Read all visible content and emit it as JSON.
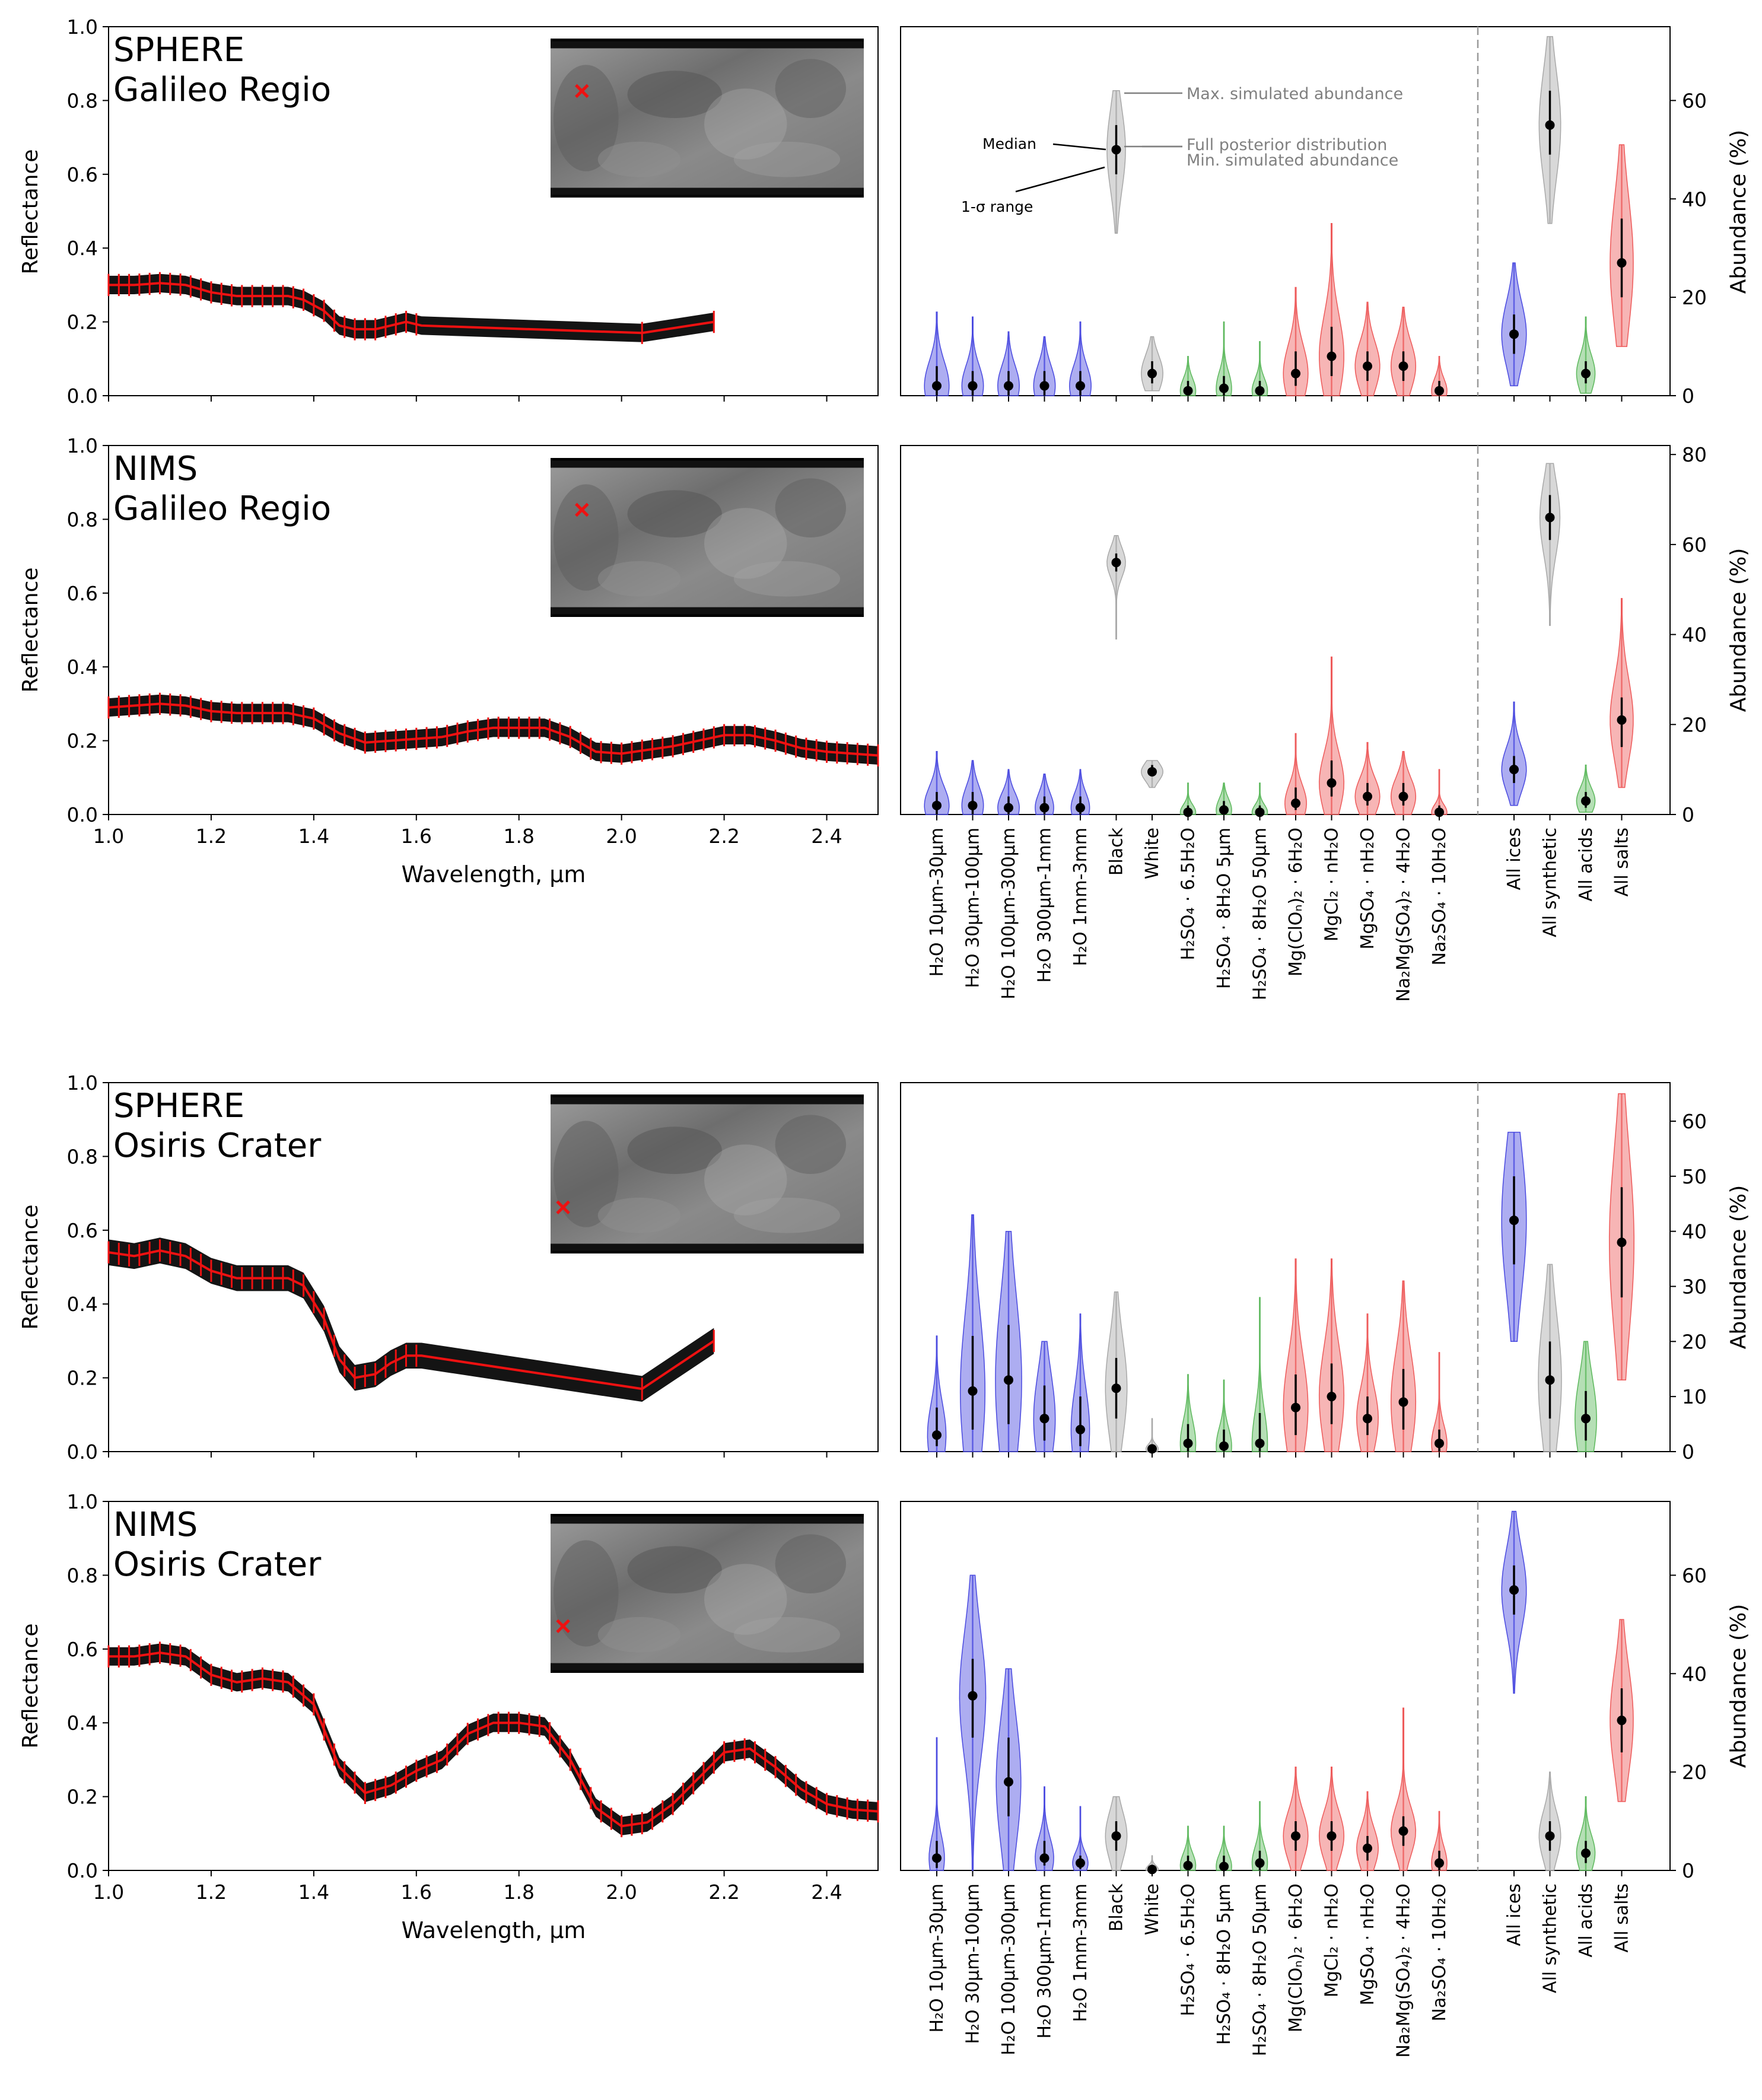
{
  "colors": {
    "ice": "#4a4ae0",
    "synthetic": "#a8a8a8",
    "acid": "#5cb85c",
    "salt": "#ee5a5a",
    "spectrum_model": "#000000",
    "spectrum_obs": "#ee1111",
    "marker": "#ee1111"
  },
  "labels": {
    "reflectance": "Reflectance",
    "wavelength": "Wavelength, µm",
    "abundance": "Abundance (%)"
  },
  "categories": [
    {
      "name": "H₂O 10µm-30µm",
      "group": "ice"
    },
    {
      "name": "H₂O 30µm-100µm",
      "group": "ice"
    },
    {
      "name": "H₂O 100µm-300µm",
      "group": "ice"
    },
    {
      "name": "H₂O 300µm-1mm",
      "group": "ice"
    },
    {
      "name": "H₂O 1mm-3mm",
      "group": "ice"
    },
    {
      "name": "Black",
      "group": "synthetic"
    },
    {
      "name": "White",
      "group": "synthetic"
    },
    {
      "name": "H₂SO₄ · 6.5H₂O",
      "group": "acid"
    },
    {
      "name": "H₂SO₄ · 8H₂O 5µm",
      "group": "acid"
    },
    {
      "name": "H₂SO₄ · 8H₂O 50µm",
      "group": "acid"
    },
    {
      "name": "Mg(ClOₙ)₂ · 6H₂O",
      "group": "salt"
    },
    {
      "name": "MgCl₂ · nH₂O",
      "group": "salt"
    },
    {
      "name": "MgSO₄ · nH₂O",
      "group": "salt"
    },
    {
      "name": "Na₂Mg(SO₄)₂ · 4H₂O",
      "group": "salt"
    },
    {
      "name": "Na₂SO₄ · 10H₂O",
      "group": "salt"
    }
  ],
  "totals": [
    {
      "name": "All ices",
      "group": "ice"
    },
    {
      "name": "All synthetic",
      "group": "synthetic"
    },
    {
      "name": "All acids",
      "group": "acid"
    },
    {
      "name": "All salts",
      "group": "salt"
    }
  ],
  "legend_annotations": {
    "max": "Max. simulated abundance",
    "full": "Full posterior distribution",
    "min": "Min. simulated abundance",
    "median": "Median",
    "sigma": "1-σ range"
  },
  "chart_data": [
    {
      "type": "line",
      "instrument": "SPHERE",
      "location": "Galileo Regio",
      "title": "SPHERE Galileo Regio",
      "xlabel": "Wavelength, µm",
      "ylabel": "Reflectance",
      "xlim": [
        1.0,
        2.5
      ],
      "ylim": [
        0.0,
        1.0
      ],
      "xticks": [
        "1.0",
        "1.2",
        "1.4",
        "1.6",
        "1.8",
        "2.0",
        "2.2",
        "2.4"
      ],
      "yticks": [
        "0.0",
        "0.2",
        "0.4",
        "0.6",
        "0.8",
        "1.0"
      ],
      "x": [
        1.0,
        1.05,
        1.1,
        1.15,
        1.2,
        1.25,
        1.3,
        1.35,
        1.38,
        1.42,
        1.45,
        1.48,
        1.52,
        1.55,
        1.58,
        1.61,
        2.04,
        2.18
      ],
      "y": [
        0.3,
        0.3,
        0.305,
        0.3,
        0.28,
        0.27,
        0.27,
        0.27,
        0.26,
        0.23,
        0.19,
        0.18,
        0.18,
        0.19,
        0.2,
        0.19,
        0.17,
        0.2
      ],
      "band_halfwidth": 0.025,
      "marker_lon_frac": 0.1,
      "marker_lat_frac": 0.33
    },
    {
      "type": "violin",
      "instrument": "SPHERE",
      "location": "Galileo Regio",
      "ylabel": "Abundance (%)",
      "ylim": [
        0,
        75
      ],
      "yticks": [
        0,
        20,
        40,
        60
      ],
      "medians": [
        2,
        2,
        2,
        2,
        2,
        50,
        4.5,
        1,
        1.5,
        1,
        4.5,
        8,
        6,
        6,
        1
      ],
      "sigma_low": [
        0,
        0,
        0,
        0,
        0,
        45,
        2.5,
        0,
        0,
        0,
        2,
        4,
        3,
        3,
        0
      ],
      "sigma_high": [
        6,
        5,
        5,
        5,
        5,
        55,
        7,
        3,
        4,
        3,
        9,
        14,
        9,
        9,
        3
      ],
      "mins": [
        0,
        0,
        0,
        0,
        0,
        33,
        1,
        0,
        0,
        0,
        0,
        0,
        0,
        0,
        0
      ],
      "maxs": [
        17,
        16,
        13,
        12,
        15,
        62,
        12,
        8,
        15,
        11,
        22,
        35,
        19,
        18,
        8
      ],
      "widths": [
        0.8,
        0.7,
        0.7,
        0.7,
        0.7,
        0.6,
        0.7,
        0.5,
        0.5,
        0.5,
        0.8,
        0.8,
        0.8,
        0.8,
        0.5
      ],
      "total_medians": [
        12.5,
        55,
        4.5,
        27
      ],
      "total_sigma_low": [
        8.5,
        49,
        2.5,
        20
      ],
      "total_sigma_high": [
        16.5,
        62,
        7,
        36
      ],
      "total_mins": [
        2,
        35,
        0.5,
        10
      ],
      "total_maxs": [
        27,
        73,
        16,
        51
      ],
      "total_widths": [
        0.8,
        0.7,
        0.6,
        0.75
      ]
    },
    {
      "type": "line",
      "instrument": "NIMS",
      "location": "Galileo Regio",
      "title": "NIMS Galileo Regio",
      "xlabel": "Wavelength, µm",
      "ylabel": "Reflectance",
      "xlim": [
        1.0,
        2.5
      ],
      "ylim": [
        0.0,
        1.0
      ],
      "xticks": [
        "1.0",
        "1.2",
        "1.4",
        "1.6",
        "1.8",
        "2.0",
        "2.2",
        "2.4"
      ],
      "yticks": [
        "0.0",
        "0.2",
        "0.4",
        "0.6",
        "0.8",
        "1.0"
      ],
      "x": [
        1.0,
        1.05,
        1.1,
        1.15,
        1.2,
        1.25,
        1.3,
        1.35,
        1.4,
        1.45,
        1.5,
        1.55,
        1.6,
        1.65,
        1.7,
        1.75,
        1.8,
        1.85,
        1.9,
        1.95,
        2.0,
        2.05,
        2.1,
        2.15,
        2.2,
        2.25,
        2.3,
        2.35,
        2.4,
        2.45,
        2.5
      ],
      "y": [
        0.29,
        0.295,
        0.3,
        0.295,
        0.28,
        0.275,
        0.275,
        0.275,
        0.26,
        0.22,
        0.195,
        0.2,
        0.205,
        0.21,
        0.225,
        0.235,
        0.235,
        0.235,
        0.21,
        0.17,
        0.165,
        0.175,
        0.185,
        0.2,
        0.215,
        0.215,
        0.2,
        0.18,
        0.17,
        0.165,
        0.16
      ],
      "band_halfwidth": 0.025,
      "marker_lon_frac": 0.1,
      "marker_lat_frac": 0.33
    },
    {
      "type": "violin",
      "instrument": "NIMS",
      "location": "Galileo Regio",
      "ylabel": "Abundance (%)",
      "ylim": [
        0,
        82
      ],
      "yticks": [
        0,
        20,
        40,
        60,
        80
      ],
      "medians": [
        2,
        2,
        1.5,
        1.5,
        1.5,
        56,
        9.5,
        0.5,
        1,
        0.5,
        2.5,
        7,
        4,
        4,
        0.5
      ],
      "sigma_low": [
        0,
        0,
        0,
        0,
        0,
        54,
        8.5,
        0,
        0,
        0,
        1,
        4,
        2,
        2,
        0
      ],
      "sigma_high": [
        5,
        5,
        4,
        4,
        4,
        58,
        11,
        2,
        3,
        2,
        6,
        12,
        7,
        7,
        2
      ],
      "mins": [
        0,
        0,
        0,
        0,
        0,
        39,
        6,
        0,
        0,
        0,
        0,
        0,
        0,
        0,
        0
      ],
      "maxs": [
        14,
        12,
        10,
        9,
        10,
        62,
        12,
        7,
        7,
        7,
        18,
        35,
        16,
        14,
        10
      ],
      "widths": [
        0.8,
        0.7,
        0.7,
        0.6,
        0.6,
        0.6,
        0.7,
        0.5,
        0.5,
        0.5,
        0.7,
        0.8,
        0.8,
        0.8,
        0.5
      ],
      "total_medians": [
        10,
        66,
        3,
        21
      ],
      "total_sigma_low": [
        7,
        61,
        1.5,
        15
      ],
      "total_sigma_high": [
        13,
        71,
        5,
        26
      ],
      "total_mins": [
        2,
        42,
        0.5,
        6
      ],
      "total_maxs": [
        25,
        78,
        11,
        48
      ],
      "total_widths": [
        0.8,
        0.65,
        0.6,
        0.75
      ]
    },
    {
      "type": "line",
      "instrument": "SPHERE",
      "location": "Osiris Crater",
      "title": "SPHERE Osiris Crater",
      "xlabel": "Wavelength, µm",
      "ylabel": "Reflectance",
      "xlim": [
        1.0,
        2.5
      ],
      "ylim": [
        0.0,
        1.0
      ],
      "xticks": [
        "1.0",
        "1.2",
        "1.4",
        "1.6",
        "1.8",
        "2.0",
        "2.2",
        "2.4"
      ],
      "yticks": [
        "0.0",
        "0.2",
        "0.4",
        "0.6",
        "0.8",
        "1.0"
      ],
      "x": [
        1.0,
        1.05,
        1.1,
        1.15,
        1.2,
        1.25,
        1.3,
        1.35,
        1.38,
        1.42,
        1.45,
        1.48,
        1.52,
        1.55,
        1.58,
        1.61,
        2.04,
        2.18
      ],
      "y": [
        0.54,
        0.53,
        0.545,
        0.53,
        0.49,
        0.47,
        0.47,
        0.47,
        0.45,
        0.36,
        0.25,
        0.2,
        0.21,
        0.24,
        0.26,
        0.26,
        0.17,
        0.3
      ],
      "band_halfwidth": 0.035,
      "marker_lon_frac": 0.04,
      "marker_lat_frac": 0.71
    },
    {
      "type": "violin",
      "instrument": "SPHERE",
      "location": "Osiris Crater",
      "ylabel": "Abundance (%)",
      "ylim": [
        0,
        67
      ],
      "yticks": [
        0,
        10,
        20,
        30,
        40,
        50,
        60
      ],
      "medians": [
        3,
        11,
        13,
        6,
        4,
        11.5,
        0.5,
        1.5,
        1,
        1.5,
        8,
        10,
        6,
        9,
        1.5
      ],
      "sigma_low": [
        1,
        4,
        5,
        2,
        1,
        6,
        0,
        0,
        0,
        0,
        3,
        5,
        3,
        4,
        0
      ],
      "sigma_high": [
        8,
        21,
        23,
        12,
        10,
        17,
        1,
        5,
        4,
        7,
        14,
        16,
        10,
        15,
        4
      ],
      "mins": [
        0,
        0,
        0,
        0,
        0,
        0,
        0,
        0,
        0,
        0,
        0,
        0,
        0,
        0,
        0
      ],
      "maxs": [
        21,
        43,
        40,
        20,
        25,
        29,
        6,
        14,
        13,
        28,
        35,
        35,
        25,
        31,
        18
      ],
      "widths": [
        0.6,
        0.8,
        0.85,
        0.7,
        0.6,
        0.7,
        0.4,
        0.5,
        0.5,
        0.5,
        0.8,
        0.8,
        0.7,
        0.8,
        0.5
      ],
      "total_medians": [
        42,
        13,
        6,
        38
      ],
      "total_sigma_low": [
        34,
        6,
        2,
        28
      ],
      "total_sigma_high": [
        50,
        20,
        11,
        48
      ],
      "total_mins": [
        20,
        0,
        0,
        13
      ],
      "total_maxs": [
        58,
        34,
        20,
        65
      ],
      "total_widths": [
        0.8,
        0.75,
        0.7,
        0.8
      ]
    },
    {
      "type": "line",
      "instrument": "NIMS",
      "location": "Osiris Crater",
      "title": "NIMS Osiris Crater",
      "xlabel": "Wavelength, µm",
      "ylabel": "Reflectance",
      "xlim": [
        1.0,
        2.5
      ],
      "ylim": [
        0.0,
        1.0
      ],
      "xticks": [
        "1.0",
        "1.2",
        "1.4",
        "1.6",
        "1.8",
        "2.0",
        "2.2",
        "2.4"
      ],
      "yticks": [
        "0.0",
        "0.2",
        "0.4",
        "0.6",
        "0.8",
        "1.0"
      ],
      "x": [
        1.0,
        1.05,
        1.1,
        1.15,
        1.2,
        1.25,
        1.3,
        1.35,
        1.4,
        1.45,
        1.5,
        1.55,
        1.6,
        1.65,
        1.7,
        1.75,
        1.8,
        1.85,
        1.9,
        1.95,
        2.0,
        2.05,
        2.1,
        2.15,
        2.2,
        2.25,
        2.3,
        2.35,
        2.4,
        2.45,
        2.5
      ],
      "y": [
        0.58,
        0.58,
        0.59,
        0.58,
        0.53,
        0.51,
        0.52,
        0.51,
        0.45,
        0.28,
        0.21,
        0.23,
        0.27,
        0.3,
        0.37,
        0.4,
        0.4,
        0.39,
        0.3,
        0.17,
        0.12,
        0.13,
        0.18,
        0.25,
        0.32,
        0.33,
        0.28,
        0.22,
        0.18,
        0.165,
        0.16
      ],
      "band_halfwidth": 0.025,
      "marker_lon_frac": 0.04,
      "marker_lat_frac": 0.71
    },
    {
      "type": "violin",
      "instrument": "NIMS",
      "location": "Osiris Crater",
      "ylabel": "Abundance (%)",
      "ylim": [
        0,
        75
      ],
      "yticks": [
        0,
        20,
        40,
        60
      ],
      "medians": [
        2.5,
        35.5,
        18,
        2.5,
        1.5,
        7,
        0.2,
        1,
        0.8,
        1.5,
        7,
        7,
        4.5,
        8,
        1.5
      ],
      "sigma_low": [
        0.5,
        27,
        11,
        1,
        0.3,
        4,
        0,
        0,
        0,
        0,
        4,
        4,
        2,
        5,
        0
      ],
      "sigma_high": [
        6,
        43,
        27,
        6,
        3,
        10,
        0.5,
        3,
        3,
        4,
        10,
        10,
        7,
        11,
        4
      ],
      "mins": [
        0,
        0,
        0,
        0,
        0,
        0,
        0,
        0,
        0,
        0,
        0,
        0,
        0,
        0,
        0
      ],
      "maxs": [
        27,
        60,
        41,
        17,
        13,
        15,
        3,
        9,
        9,
        14,
        21,
        21,
        16,
        33,
        12
      ],
      "widths": [
        0.5,
        0.85,
        0.8,
        0.6,
        0.5,
        0.7,
        0.4,
        0.5,
        0.5,
        0.5,
        0.8,
        0.8,
        0.7,
        0.8,
        0.5
      ],
      "total_medians": [
        57,
        7,
        3.5,
        30.5
      ],
      "total_sigma_low": [
        52,
        4,
        1.5,
        24
      ],
      "total_sigma_high": [
        62,
        10,
        6,
        37
      ],
      "total_mins": [
        36,
        0,
        0,
        14
      ],
      "total_maxs": [
        73,
        20,
        15,
        51
      ],
      "total_widths": [
        0.8,
        0.7,
        0.6,
        0.75
      ]
    }
  ]
}
